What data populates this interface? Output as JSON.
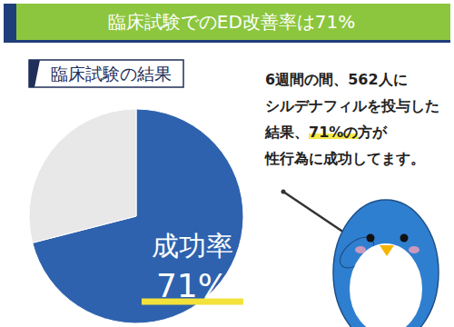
{
  "chart_data": {
    "type": "pie",
    "title": "臨床試験でのED改善率は71%",
    "subtitle": "臨床試験の結果",
    "categories": [
      "成功率",
      null
    ],
    "values": [
      71,
      29
    ],
    "value_labels": [
      "71%",
      null
    ],
    "colors": [
      "#2e62ae",
      "#e8e8e8"
    ],
    "data_labels": true,
    "annotations": [
      "6週間の間、562人に",
      "シルデナフィルを投与した",
      "結果、71%の方が",
      "性行為に成功してます。"
    ]
  }
}
